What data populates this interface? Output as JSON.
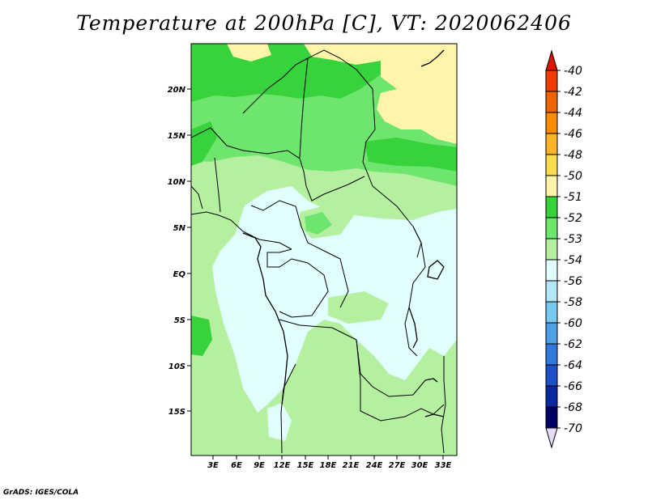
{
  "title": "Temperature at 200hPa [C], VT: 2020062406",
  "credit": "GrADS: IGES/COLA",
  "axes": {
    "lat_labels": [
      "20N",
      "15N",
      "10N",
      "5N",
      "EQ",
      "5S",
      "10S",
      "15S"
    ],
    "lon_labels": [
      "3E",
      "6E",
      "9E",
      "12E",
      "15E",
      "18E",
      "21E",
      "24E",
      "27E",
      "30E",
      "33E"
    ]
  },
  "colorbar": {
    "labels": [
      "-40",
      "-42",
      "-44",
      "-46",
      "-48",
      "-50",
      "-51",
      "-52",
      "-53",
      "-54",
      "-56",
      "-58",
      "-60",
      "-62",
      "-64",
      "-66",
      "-68",
      "-70"
    ],
    "colors": [
      "#dc1400",
      "#f03c00",
      "#f06400",
      "#fa8c00",
      "#fab428",
      "#fadc50",
      "#fff5aa",
      "#37d23c",
      "#6ee66e",
      "#b4f0a0",
      "#e1ffff",
      "#b4e6fa",
      "#78c8f0",
      "#50a0e6",
      "#3278dc",
      "#1e50c8",
      "#0a28a0",
      "#000064",
      "#e6dcfa"
    ]
  },
  "colors": {
    "warm": "#fff5aa",
    "green_51": "#37d23c",
    "green_52": "#6ee66e",
    "green_53": "#b4f0a0",
    "cold_54": "#e1ffff"
  }
}
